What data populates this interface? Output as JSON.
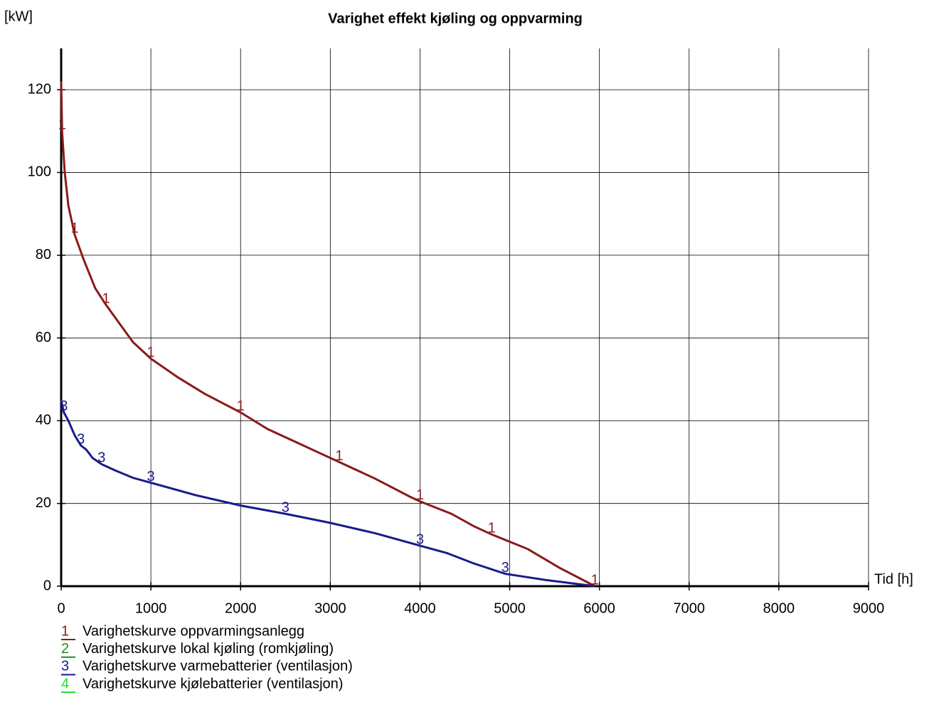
{
  "chart_data": {
    "type": "line",
    "title": "Varighet effekt kjøling og oppvarming",
    "y_label": "[kW]",
    "x_label": "Tid [h]",
    "xlim": [
      0,
      9000
    ],
    "xticks": [
      0,
      1000,
      2000,
      3000,
      4000,
      5000,
      6000,
      7000,
      8000,
      9000
    ],
    "ylim": [
      0,
      130
    ],
    "yticks": [
      0,
      20,
      40,
      60,
      80,
      100,
      120
    ],
    "grid": true,
    "series": [
      {
        "marker": "1",
        "name": "Varighetskurve oppvarmingsanlegg",
        "color": "#8b1a1a",
        "x": [
          0,
          10,
          40,
          80,
          150,
          250,
          380,
          500,
          650,
          800,
          1000,
          1300,
          1600,
          2000,
          2300,
          2700,
          3100,
          3500,
          3900,
          4000,
          4350,
          4600,
          4800,
          5200,
          5550,
          5950
        ],
        "values": [
          122,
          110,
          100,
          92,
          85,
          79,
          72,
          68,
          63.5,
          59,
          55,
          50.5,
          46.5,
          42,
          38,
          34,
          30,
          26,
          21.5,
          20.5,
          17.5,
          14.5,
          12.5,
          9,
          4.5,
          0
        ]
      },
      {
        "marker": "2",
        "name": "Varighetskurve lokal kjøling (romkjøling)",
        "color": "#1f8b1f"
      },
      {
        "marker": "3",
        "name": "Varighetskurve varmebatterier (ventilasjon)",
        "color": "#1a1a8b",
        "x": [
          0,
          30,
          80,
          150,
          220,
          280,
          350,
          450,
          600,
          800,
          1000,
          1500,
          2000,
          2500,
          3000,
          3500,
          4000,
          4300,
          4600,
          4950,
          5400,
          5950
        ],
        "values": [
          45,
          42,
          40,
          36.5,
          34,
          33,
          31,
          29.5,
          28,
          26.2,
          25,
          22,
          19.5,
          17.5,
          15.3,
          12.8,
          9.8,
          8,
          5.5,
          3,
          1.5,
          0
        ]
      },
      {
        "marker": "4",
        "name": "Varighetskurve kjølebatterier (ventilasjon)",
        "color": "#22dd22"
      }
    ]
  }
}
